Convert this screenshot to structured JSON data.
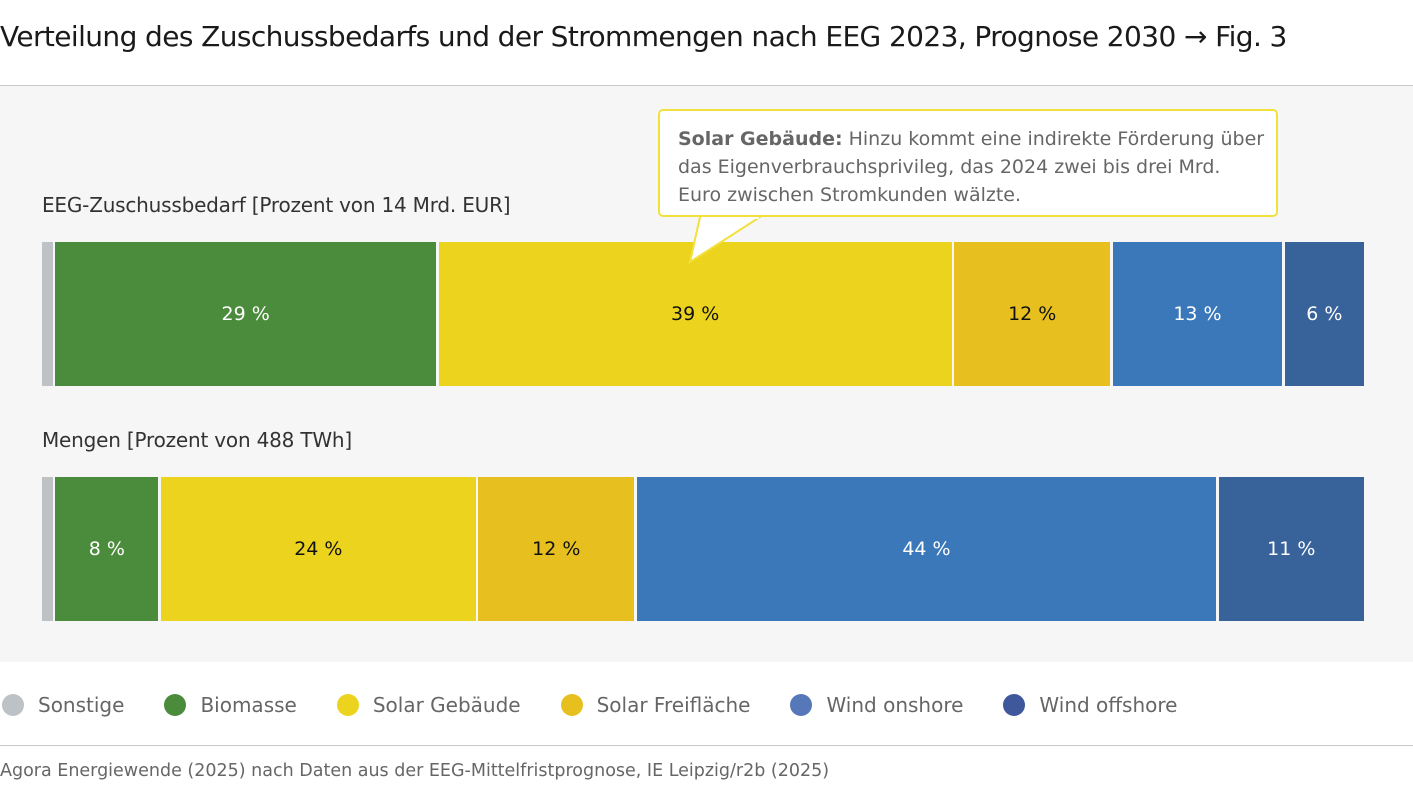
{
  "title": "Verteilung des Zuschussbedarfs und der Strommengen nach EEG 2023, Prognose 2030 → Fig. 3",
  "callout": {
    "bold": "Solar Gebäude:",
    "text": " Hinzu kommt eine indirekte Förderung über das Eigenverbrauchsprivileg, das 2024 zwei bis drei Mrd. Euro zwischen Stromkunden wälzte."
  },
  "source": "Agora Energiewende (2025) nach Daten aus der EEG-Mittelfristprognose, IE Leipzig/r2b (2025)",
  "chart_data": {
    "type": "bar",
    "orientation": "horizontal-stacked-100",
    "categories": [
      "Sonstige",
      "Biomasse",
      "Solar Gebäude",
      "Solar Freifläche",
      "Wind onshore",
      "Wind offshore"
    ],
    "colors": [
      "#bcc2c5",
      "#4a8b3c",
      "#ecd41e",
      "#e7c020",
      "#3b78b9",
      "#37629a"
    ],
    "legend_colors": [
      "#bcc2c5",
      "#4a8b3c",
      "#ecd41e",
      "#e7c020",
      "#5678b8",
      "#3f589b"
    ],
    "label_colors": [
      "#ffffff",
      "#ffffff",
      "#111111",
      "#111111",
      "#ffffff",
      "#ffffff"
    ],
    "legend_position": "bottom-left",
    "grid": false,
    "bars": [
      {
        "label": "EEG-Zuschussbedarf [Prozent von 14 Mrd. EUR]",
        "values": [
          1,
          29,
          39,
          12,
          13,
          6
        ],
        "value_labels": [
          "",
          "29 %",
          "39 %",
          "12 %",
          "13 %",
          "6 %"
        ]
      },
      {
        "label": "Mengen [Prozent von 488 TWh]",
        "values": [
          1,
          8,
          24,
          12,
          44,
          11
        ],
        "value_labels": [
          "",
          "8 %",
          "24 %",
          "12 %",
          "44 %",
          "11 %"
        ]
      }
    ]
  }
}
